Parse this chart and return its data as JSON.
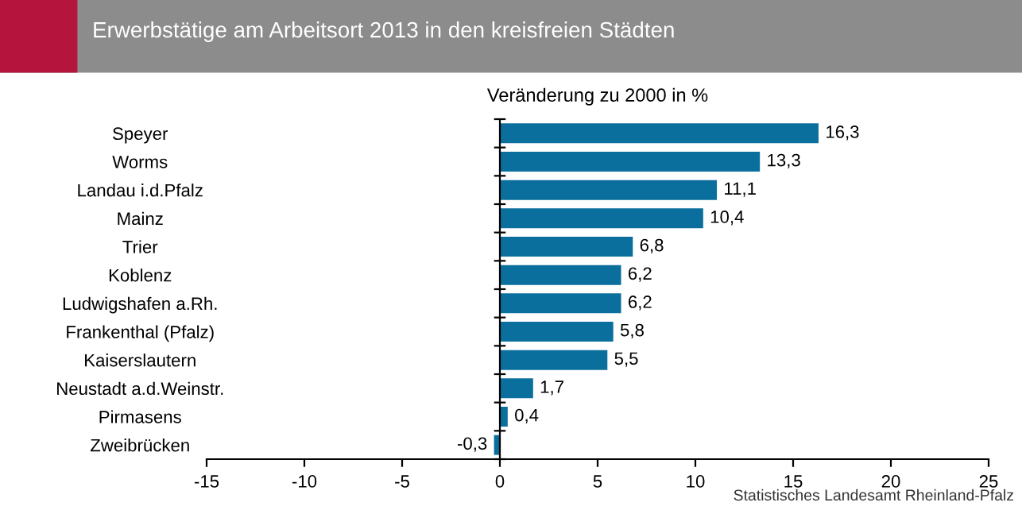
{
  "chart_data": {
    "type": "bar",
    "orientation": "horizontal",
    "title": "Erwerbstätige am Arbeitsort 2013 in den kreisfreien Städten",
    "subtitle": "Veränderung zu 2000 in %",
    "categories": [
      "Speyer",
      "Worms",
      "Landau i.d.Pfalz",
      "Mainz",
      "Trier",
      "Koblenz",
      "Ludwigshafen a.Rh.",
      "Frankenthal (Pfalz)",
      "Kaiserslautern",
      "Neustadt a.d.Weinstr.",
      "Pirmasens",
      "Zweibrücken"
    ],
    "values": [
      16.3,
      13.3,
      11.1,
      10.4,
      6.8,
      6.2,
      6.2,
      5.8,
      5.5,
      1.7,
      0.4,
      -0.3
    ],
    "value_labels": [
      "16,3",
      "13,3",
      "11,1",
      "10,4",
      "6,8",
      "6,2",
      "6,2",
      "5,8",
      "5,5",
      "1,7",
      "0,4",
      "-0,3"
    ],
    "color": "#0a6f9c",
    "xlim": [
      -15,
      25
    ],
    "xticks": [
      -15,
      -10,
      -5,
      0,
      5,
      10,
      15,
      20,
      25
    ],
    "grid": false,
    "legend": false,
    "ref_lines": [
      {
        "axis": "x",
        "value": 0,
        "color": "#000000",
        "line_style": "solid"
      }
    ],
    "annotations": [
      "Statistisches Landesamt Rheinland-Pfalz"
    ]
  }
}
